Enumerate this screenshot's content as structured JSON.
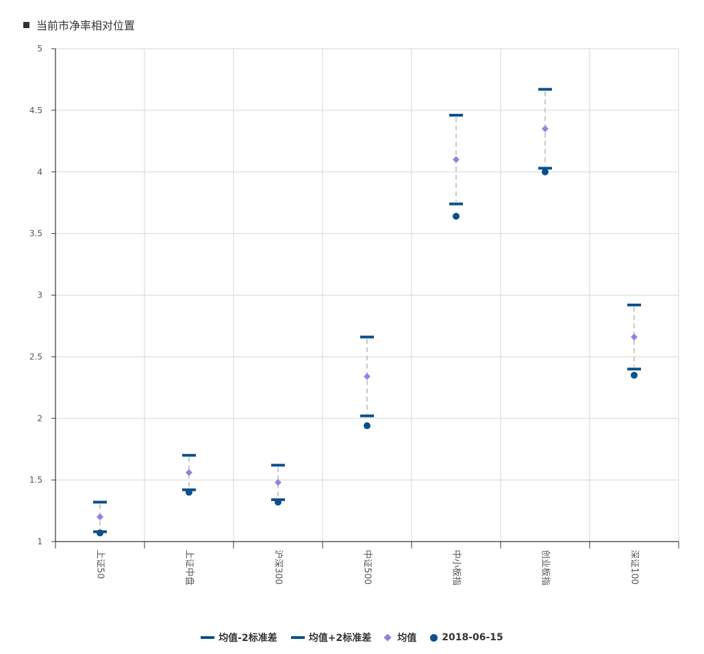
{
  "chart_data": {
    "type": "scatter",
    "title": "当前市净率相对位置",
    "categories": [
      "上证50",
      "上证中盘",
      "沪深300",
      "中证500",
      "中小板指",
      "创业板指",
      "深证100"
    ],
    "ylim": [
      1,
      5
    ],
    "yticks": [
      "1",
      "1.5",
      "2",
      "2.5",
      "3",
      "3.5",
      "4",
      "4.5",
      "5"
    ],
    "grid": true,
    "legend_position": "bottom",
    "series": [
      {
        "name": "均值-2标准差",
        "marker": "bar",
        "color": "#0b4f8c",
        "values": [
          1.08,
          1.42,
          1.34,
          2.02,
          3.74,
          4.03,
          2.4
        ]
      },
      {
        "name": "均值+2标准差",
        "marker": "bar",
        "color": "#0b4f8c",
        "values": [
          1.32,
          1.7,
          1.62,
          2.66,
          4.46,
          4.67,
          2.92
        ]
      },
      {
        "name": "均值",
        "marker": "diamond",
        "color": "#8a86e0",
        "values": [
          1.2,
          1.56,
          1.48,
          2.34,
          4.1,
          4.35,
          2.66
        ]
      },
      {
        "name": "2018-06-15",
        "marker": "circle",
        "color": "#0b4f8c",
        "values": [
          1.07,
          1.4,
          1.32,
          1.94,
          3.64,
          4.0,
          2.35
        ]
      }
    ],
    "connector_color": "#c8c8c8"
  }
}
